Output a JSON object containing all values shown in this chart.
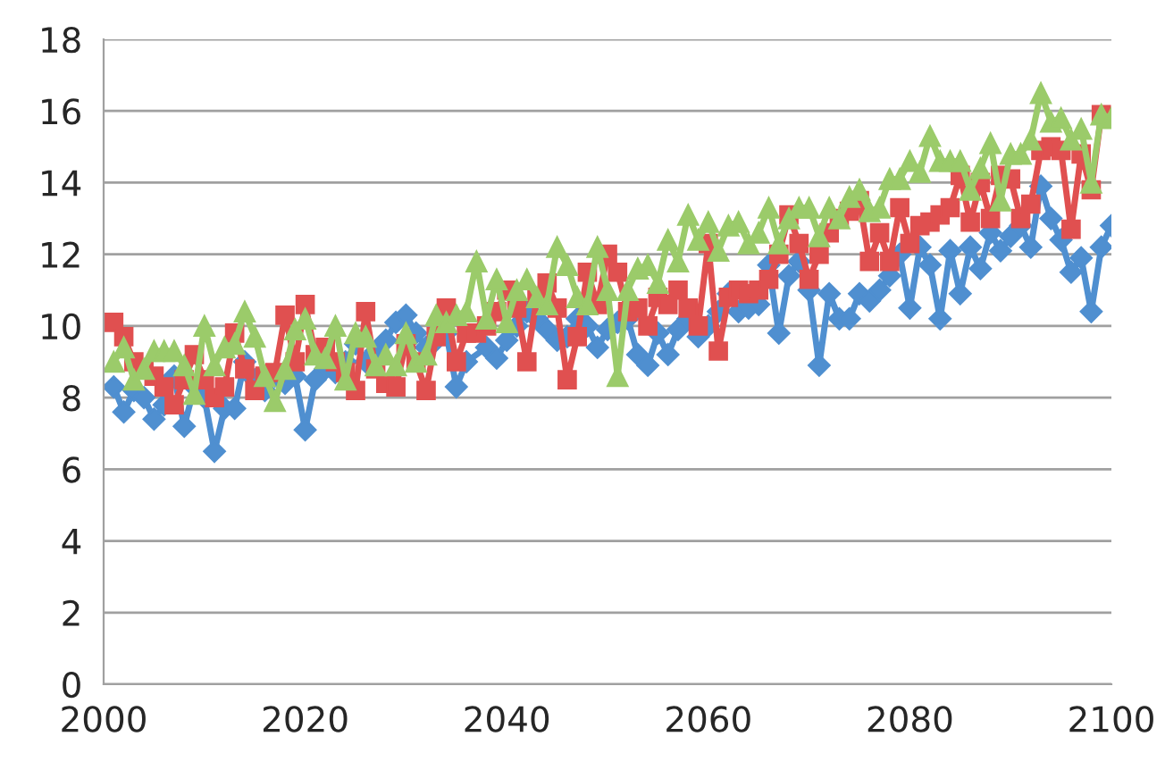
{
  "chart_data": {
    "type": "line",
    "x": [
      2001,
      2002,
      2003,
      2004,
      2005,
      2006,
      2007,
      2008,
      2009,
      2010,
      2011,
      2012,
      2013,
      2014,
      2015,
      2016,
      2017,
      2018,
      2019,
      2020,
      2021,
      2022,
      2023,
      2024,
      2025,
      2026,
      2027,
      2028,
      2029,
      2030,
      2031,
      2032,
      2033,
      2034,
      2035,
      2036,
      2037,
      2038,
      2039,
      2040,
      2041,
      2042,
      2043,
      2044,
      2045,
      2046,
      2047,
      2048,
      2049,
      2050,
      2051,
      2052,
      2053,
      2054,
      2055,
      2056,
      2057,
      2058,
      2059,
      2060,
      2061,
      2062,
      2063,
      2064,
      2065,
      2066,
      2067,
      2068,
      2069,
      2070,
      2071,
      2072,
      2073,
      2074,
      2075,
      2076,
      2077,
      2078,
      2079,
      2080,
      2081,
      2082,
      2083,
      2084,
      2085,
      2086,
      2087,
      2088,
      2089,
      2090,
      2091,
      2092,
      2093,
      2094,
      2095,
      2096,
      2097,
      2098,
      2099,
      2100
    ],
    "series": [
      {
        "color": "#4f8fd0",
        "marker": "diamond",
        "values": [
          8.3,
          7.6,
          8.2,
          8.0,
          7.4,
          7.8,
          8.6,
          7.2,
          8.3,
          8.0,
          6.5,
          7.7,
          7.7,
          9.0,
          8.5,
          8.2,
          8.6,
          8.4,
          8.6,
          7.1,
          8.5,
          8.8,
          8.7,
          9.0,
          9.5,
          9.0,
          9.3,
          9.6,
          10.1,
          10.3,
          9.8,
          9.4,
          9.6,
          9.8,
          8.3,
          9.0,
          null,
          9.4,
          9.1,
          9.6,
          10.0,
          10.4,
          10.2,
          9.9,
          9.6,
          9.7,
          10.2,
          10.0,
          9.4,
          9.9,
          10.1,
          10.2,
          9.2,
          8.9,
          9.8,
          9.2,
          9.9,
          10.2,
          9.7,
          10.0,
          10.4,
          10.9,
          10.4,
          10.5,
          10.6,
          11.7,
          9.8,
          11.4,
          11.8,
          11.0,
          8.9,
          10.9,
          10.2,
          10.2,
          10.9,
          10.7,
          11.0,
          11.4,
          12.0,
          10.5,
          12.2,
          11.7,
          10.2,
          12.1,
          10.9,
          12.2,
          11.6,
          12.6,
          12.1,
          12.5,
          12.8,
          12.2,
          13.9,
          13.0,
          12.4,
          11.5,
          11.9,
          10.4,
          12.2,
          12.8
        ]
      },
      {
        "color": "#e05050",
        "marker": "square",
        "values": [
          10.1,
          9.7,
          9.0,
          8.8,
          8.6,
          8.3,
          7.8,
          8.5,
          9.2,
          8.5,
          8.0,
          8.3,
          9.8,
          8.8,
          8.2,
          8.6,
          8.7,
          10.3,
          9.0,
          10.6,
          9.2,
          9.4,
          9.0,
          8.7,
          8.2,
          10.4,
          8.8,
          8.4,
          8.3,
          9.5,
          9.0,
          8.2,
          9.7,
          10.5,
          9.0,
          9.8,
          9.8,
          10.0,
          10.4,
          11.0,
          10.5,
          9.0,
          10.8,
          11.2,
          10.5,
          8.5,
          9.7,
          11.5,
          10.6,
          12.0,
          11.5,
          10.4,
          10.5,
          10.0,
          10.8,
          10.6,
          11.0,
          10.5,
          10.0,
          12.3,
          9.3,
          10.8,
          11.0,
          10.9,
          11.0,
          11.3,
          12.0,
          13.1,
          12.3,
          11.3,
          12.0,
          12.6,
          13.0,
          13.2,
          13.5,
          11.8,
          12.6,
          11.8,
          13.3,
          12.3,
          12.8,
          12.9,
          13.1,
          13.3,
          14.2,
          12.9,
          14.0,
          13.0,
          14.2,
          14.1,
          13.0,
          13.4,
          14.9,
          15.0,
          14.9,
          12.7,
          14.8,
          13.8,
          15.9,
          15.8
        ]
      },
      {
        "color": "#9bcb6a",
        "marker": "triangle",
        "values": [
          9.0,
          9.4,
          8.5,
          8.8,
          9.3,
          9.3,
          9.3,
          8.9,
          8.1,
          10.0,
          8.9,
          9.4,
          9.5,
          10.4,
          9.7,
          8.6,
          7.9,
          8.8,
          9.9,
          10.2,
          9.2,
          9.1,
          10.0,
          8.5,
          9.8,
          9.7,
          8.9,
          9.2,
          8.9,
          9.8,
          9.0,
          9.2,
          10.3,
          10.1,
          10.3,
          10.4,
          11.8,
          10.2,
          11.3,
          10.1,
          11.0,
          11.3,
          10.8,
          10.6,
          12.2,
          11.7,
          10.8,
          10.6,
          12.2,
          11.0,
          8.6,
          11.0,
          11.6,
          11.7,
          11.2,
          12.4,
          11.8,
          13.1,
          12.4,
          12.9,
          12.1,
          12.8,
          12.9,
          12.3,
          12.6,
          13.3,
          12.3,
          13.0,
          13.3,
          13.3,
          12.5,
          13.3,
          13.0,
          13.6,
          13.8,
          13.2,
          13.3,
          14.1,
          14.1,
          14.6,
          14.3,
          15.3,
          14.6,
          14.6,
          14.6,
          13.8,
          14.4,
          15.1,
          13.5,
          14.8,
          14.8,
          15.2,
          16.5,
          15.7,
          15.8,
          15.2,
          15.5,
          14.0,
          15.9,
          15.8
        ]
      }
    ],
    "xlim": [
      2000,
      2100
    ],
    "xticks": [
      2000,
      2020,
      2040,
      2060,
      2080,
      2100
    ],
    "ylim": [
      0,
      18
    ],
    "yticks": [
      0,
      2,
      4,
      6,
      8,
      10,
      12,
      14,
      16,
      18
    ],
    "grid": "y",
    "line_style": "solid"
  }
}
